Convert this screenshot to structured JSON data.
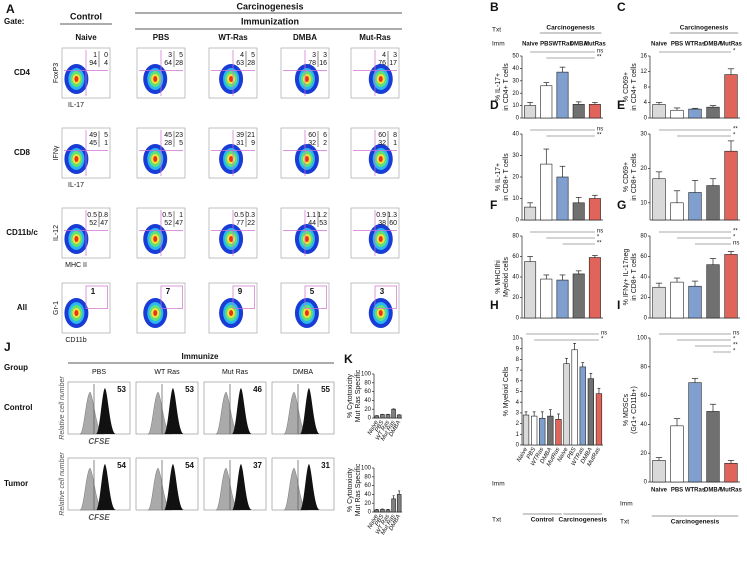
{
  "panel_a": {
    "label": "A",
    "gate_label": "Gate:",
    "control": "Control",
    "carcinogenesis": "Carcinogenesis",
    "immunization": "Immunization",
    "columns": [
      "Naive",
      "PBS",
      "WT-Ras",
      "DMBA",
      "Mut-Ras"
    ],
    "rows": [
      {
        "label": "CD4",
        "ylabel": "FoxP3",
        "xlabel": "IL-17",
        "quadrants": [
          [
            1,
            0,
            94,
            4
          ],
          [
            3,
            5,
            64,
            28
          ],
          [
            4,
            5,
            63,
            28
          ],
          [
            3,
            3,
            78,
            16
          ],
          [
            4,
            3,
            76,
            17
          ]
        ]
      },
      {
        "label": "CD8",
        "ylabel": "IFNγ",
        "xlabel": "IL-17",
        "quadrants": [
          [
            49,
            5,
            45,
            1
          ],
          [
            45,
            23,
            28,
            5
          ],
          [
            39,
            21,
            31,
            9
          ],
          [
            60,
            6,
            32,
            2
          ],
          [
            60,
            8,
            32,
            1
          ]
        ]
      },
      {
        "label": "CD11b/c",
        "ylabel": "IL-12",
        "xlabel": "MHC II",
        "quadrants": [
          [
            0.5,
            0.8,
            52,
            47
          ],
          [
            0.5,
            1,
            52,
            47
          ],
          [
            0.5,
            0.3,
            77,
            22
          ],
          [
            1.1,
            1.2,
            44,
            53
          ],
          [
            0.9,
            1.3,
            38,
            60
          ]
        ]
      },
      {
        "label": "All",
        "ylabel": "Gr-1",
        "xlabel": "CD11b",
        "gates": [
          1,
          7,
          9,
          5,
          3
        ]
      }
    ]
  },
  "panel_j": {
    "label": "J",
    "group": "Group",
    "immunize": "Immunize",
    "columns": [
      "PBS",
      "WT Ras",
      "Mut Ras",
      "DMBA"
    ],
    "ylabel": "Relative cell number",
    "xlabel": "CFSE",
    "rows": [
      {
        "label": "Control",
        "values": [
          53,
          53,
          46,
          55
        ]
      },
      {
        "label": "Tumor",
        "values": [
          54,
          54,
          37,
          31
        ]
      }
    ]
  },
  "chart_data": [
    {
      "type": "bar",
      "panel": "B",
      "ylabel": [
        "% IL-17+",
        "in CD4+ T cells"
      ],
      "categories": [
        "Naive",
        "PBS",
        "WTRas",
        "DMBA",
        "MutRas"
      ],
      "group_labels": [
        "Carcinogenesis"
      ],
      "row_labels": [
        "Txt",
        "Imm"
      ],
      "values": [
        10,
        26,
        37,
        11,
        11
      ],
      "errors": [
        2.5,
        2.5,
        4,
        2,
        1.5
      ],
      "colors": [
        "#d9d9d9",
        "#ffffff",
        "#7f9fcf",
        "#707070",
        "#e0645a"
      ],
      "ylim": [
        0,
        50
      ],
      "yticks": [
        0,
        10,
        20,
        30,
        40,
        50
      ],
      "annotations": [
        "ns",
        "**"
      ]
    },
    {
      "type": "bar",
      "panel": "C",
      "ylabel": [
        "% CD69+",
        "in CD4+ T cells"
      ],
      "categories": [
        "Naive",
        "PBS",
        "WTRas",
        "DMBA",
        "MutRas"
      ],
      "group_labels": [
        "Carcinogenesis"
      ],
      "values": [
        3.5,
        2,
        2.3,
        2.8,
        11.2
      ],
      "errors": [
        0.5,
        0.6,
        0.2,
        0.4,
        1.5
      ],
      "colors": [
        "#d9d9d9",
        "#ffffff",
        "#7f9fcf",
        "#707070",
        "#e0645a"
      ],
      "ylim": [
        0,
        16
      ],
      "yticks": [
        0,
        4,
        8,
        12,
        16
      ],
      "annotations": [
        "*"
      ]
    },
    {
      "type": "bar",
      "panel": "D",
      "ylabel": [
        "% IL-17+",
        "in CD8+ T cells"
      ],
      "values": [
        6,
        26,
        20,
        8,
        10
      ],
      "errors": [
        2,
        7,
        5,
        2.5,
        1.5
      ],
      "colors": [
        "#d9d9d9",
        "#ffffff",
        "#7f9fcf",
        "#707070",
        "#e0645a"
      ],
      "ylim": [
        0,
        40
      ],
      "yticks": [
        0,
        10,
        20,
        30,
        40
      ],
      "annotations": [
        "ns",
        "**"
      ]
    },
    {
      "type": "bar",
      "panel": "E",
      "ylabel": [
        "% CD69+",
        "in CD8+ T cells"
      ],
      "values": [
        17,
        10,
        13,
        15,
        25
      ],
      "errors": [
        2,
        3.5,
        3.5,
        2,
        3
      ],
      "colors": [
        "#d9d9d9",
        "#ffffff",
        "#7f9fcf",
        "#707070",
        "#e0645a"
      ],
      "ylim": [
        5,
        30
      ],
      "yticks": [
        10,
        20,
        30
      ],
      "annotations": [
        "**",
        "*"
      ]
    },
    {
      "type": "bar",
      "panel": "F",
      "ylabel": [
        "% MHCIIhi",
        "Myeloid cells"
      ],
      "values": [
        55,
        38,
        37,
        43,
        59
      ],
      "errors": [
        5,
        4,
        5,
        3,
        2
      ],
      "colors": [
        "#d9d9d9",
        "#ffffff",
        "#7f9fcf",
        "#707070",
        "#e0645a"
      ],
      "ylim": [
        0,
        80
      ],
      "yticks": [
        0,
        20,
        40,
        60,
        80
      ],
      "annotations": [
        "ns",
        "*",
        "**"
      ]
    },
    {
      "type": "bar",
      "panel": "G",
      "ylabel": [
        "% IFNγ+ IL-17neg",
        "in CD8+ T cells"
      ],
      "values": [
        30,
        35,
        31,
        52,
        62
      ],
      "errors": [
        4,
        4,
        5,
        6,
        3
      ],
      "colors": [
        "#d9d9d9",
        "#ffffff",
        "#7f9fcf",
        "#707070",
        "#e0645a"
      ],
      "ylim": [
        0,
        80
      ],
      "yticks": [
        0,
        20,
        40,
        60,
        80
      ],
      "annotations": [
        "**",
        "*",
        "ns"
      ]
    },
    {
      "type": "bar",
      "panel": "H",
      "ylabel": [
        "% Myeloid Cells"
      ],
      "categories": [
        "Naive",
        "PBS",
        "WTRas",
        "DMBA",
        "MutRas",
        "Naive",
        "PBS",
        "WTRas",
        "DMBA",
        "MutRas"
      ],
      "group_labels": [
        "Control",
        "Carcinogenesis"
      ],
      "row_labels": [
        "Imm",
        "Txt"
      ],
      "values": [
        2.8,
        2.7,
        2.5,
        2.7,
        2.4,
        7.6,
        8.9,
        7.3,
        6.2,
        4.8
      ],
      "errors": [
        0.3,
        0.4,
        0.6,
        0.6,
        0.5,
        0.5,
        0.6,
        0.4,
        0.5,
        0.5
      ],
      "colors": [
        "#d9d9d9",
        "#ffffff",
        "#7f9fcf",
        "#707070",
        "#e0645a",
        "#d9d9d9",
        "#ffffff",
        "#7f9fcf",
        "#707070",
        "#e0645a"
      ],
      "ylim": [
        0,
        10
      ],
      "yticks": [
        0,
        1,
        2,
        3,
        4,
        5,
        6,
        7,
        8,
        9,
        10
      ],
      "annotations": [
        "ns",
        "*"
      ]
    },
    {
      "type": "bar",
      "panel": "I",
      "ylabel": [
        "% MDSCs",
        "(Gr1+ CD11b+)"
      ],
      "categories": [
        "Naive",
        "PBS",
        "WTRas",
        "DMBA",
        "MutRas"
      ],
      "group_labels": [
        "Carcinogenesis"
      ],
      "row_labels": [
        "Imm",
        "Txt"
      ],
      "values": [
        15,
        39,
        69,
        49,
        13
      ],
      "errors": [
        2,
        5,
        3,
        5,
        2
      ],
      "colors": [
        "#d9d9d9",
        "#ffffff",
        "#7f9fcf",
        "#707070",
        "#e0645a"
      ],
      "ylim": [
        0,
        100
      ],
      "yticks": [
        0,
        20,
        40,
        60,
        80,
        100
      ],
      "annotations": [
        "ns",
        "*",
        "**",
        "*"
      ]
    },
    {
      "type": "bar",
      "panel": "K",
      "ylabel": [
        "% Cytotoxicity",
        "Mut Ras Specific"
      ],
      "categories": [
        "Naive",
        "PBS",
        "WT Ras",
        "Mut Ras",
        "DMBA"
      ],
      "values": [
        5,
        8,
        8,
        20,
        7
      ],
      "errors": [
        0.5,
        0.5,
        0.5,
        1,
        0.5
      ],
      "colors": [
        "#808080",
        "#808080",
        "#808080",
        "#808080",
        "#808080"
      ],
      "ylim": [
        0,
        100
      ],
      "yticks": [
        0,
        20,
        40,
        60,
        80,
        100
      ]
    },
    {
      "type": "bar",
      "ylabel": [
        "% Cytotoxicity",
        "Mut Ras Specific"
      ],
      "categories": [
        "Naive",
        "PBS",
        "WT Ras",
        "Mut Ras",
        "DMBA"
      ],
      "values": [
        5,
        6,
        5,
        30,
        40
      ],
      "errors": [
        1,
        1,
        1,
        7,
        8
      ],
      "colors": [
        "#808080",
        "#808080",
        "#808080",
        "#808080",
        "#808080"
      ],
      "ylim": [
        0,
        100
      ],
      "yticks": [
        0,
        20,
        40,
        60,
        80,
        100
      ]
    }
  ]
}
